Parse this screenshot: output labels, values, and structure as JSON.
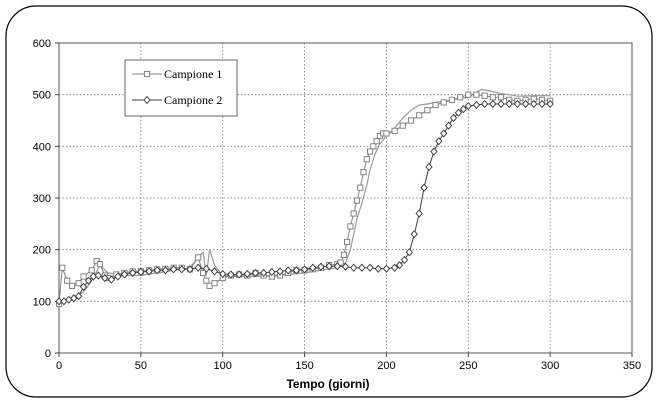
{
  "chart_data": {
    "type": "line",
    "title": "",
    "xlabel": "Tempo (giorni)",
    "ylabel": "",
    "xlim": [
      0,
      350
    ],
    "ylim": [
      0,
      600
    ],
    "xticks": [
      0,
      50,
      100,
      150,
      200,
      250,
      300,
      350
    ],
    "yticks": [
      0,
      100,
      200,
      300,
      400,
      500,
      600
    ],
    "grid": true,
    "legend": "top-left",
    "series": [
      {
        "name": "Campione 1",
        "marker": "square",
        "color": "#808080",
        "x": [
          0,
          2,
          5,
          8,
          12,
          15,
          20,
          23,
          25,
          28,
          30,
          35,
          40,
          45,
          50,
          55,
          60,
          65,
          70,
          75,
          80,
          85,
          88,
          90,
          92,
          95,
          100,
          105,
          110,
          115,
          120,
          125,
          130,
          135,
          140,
          145,
          150,
          155,
          160,
          165,
          170,
          172,
          174,
          176,
          178,
          180,
          182,
          184,
          186,
          188,
          190,
          192,
          194,
          196,
          198,
          200,
          205,
          210,
          215,
          220,
          225,
          230,
          235,
          240,
          245,
          250,
          255,
          260,
          265,
          270,
          275,
          280,
          285,
          290,
          295,
          300
        ],
        "y": [
          95,
          165,
          140,
          130,
          135,
          148,
          160,
          178,
          172,
          150,
          145,
          152,
          155,
          158,
          158,
          160,
          162,
          163,
          165,
          165,
          162,
          185,
          155,
          140,
          130,
          135,
          145,
          150,
          152,
          150,
          155,
          150,
          148,
          150,
          155,
          160,
          160,
          162,
          165,
          170,
          172,
          175,
          190,
          215,
          245,
          270,
          295,
          320,
          350,
          375,
          390,
          400,
          410,
          420,
          425,
          425,
          430,
          440,
          450,
          460,
          470,
          480,
          485,
          490,
          495,
          500,
          500,
          498,
          495,
          495,
          490,
          488,
          490,
          492,
          490,
          488
        ]
      },
      {
        "name": "Campione 2",
        "marker": "diamond",
        "color": "#404040",
        "x": [
          0,
          3,
          6,
          9,
          12,
          15,
          18,
          21,
          24,
          28,
          32,
          36,
          40,
          45,
          50,
          55,
          60,
          65,
          70,
          75,
          80,
          85,
          90,
          95,
          100,
          105,
          110,
          115,
          120,
          125,
          130,
          135,
          140,
          145,
          150,
          155,
          160,
          165,
          170,
          175,
          180,
          185,
          190,
          195,
          200,
          205,
          208,
          211,
          214,
          217,
          220,
          223,
          226,
          229,
          232,
          235,
          238,
          241,
          244,
          247,
          250,
          255,
          260,
          265,
          270,
          275,
          280,
          285,
          290,
          295,
          300
        ],
        "y": [
          100,
          100,
          103,
          106,
          110,
          128,
          140,
          148,
          150,
          145,
          142,
          148,
          152,
          155,
          157,
          158,
          160,
          160,
          162,
          162,
          162,
          165,
          163,
          158,
          153,
          152,
          152,
          153,
          155,
          155,
          157,
          158,
          160,
          160,
          162,
          165,
          167,
          168,
          168,
          167,
          165,
          165,
          165,
          163,
          163,
          165,
          170,
          180,
          195,
          230,
          270,
          320,
          360,
          390,
          410,
          425,
          440,
          455,
          465,
          472,
          478,
          480,
          482,
          482,
          482,
          482,
          482,
          482,
          482,
          482,
          482
        ]
      },
      {
        "name": "",
        "marker": "none",
        "color": "#999999",
        "x": [
          0,
          5,
          10,
          15,
          20,
          25,
          30,
          40,
          50,
          60,
          70,
          80,
          85,
          88,
          90,
          92,
          95,
          100,
          110,
          120,
          130,
          140,
          150,
          160,
          170,
          175,
          178,
          180,
          182,
          185,
          188,
          190,
          193,
          196,
          200,
          205,
          210,
          215,
          220,
          225,
          230,
          235,
          240,
          245,
          250,
          255,
          258,
          262,
          266,
          270,
          275,
          280,
          290,
          300
        ],
        "y": [
          98,
          105,
          110,
          118,
          140,
          170,
          155,
          150,
          150,
          155,
          160,
          165,
          185,
          195,
          150,
          200,
          170,
          150,
          148,
          148,
          150,
          152,
          155,
          160,
          165,
          175,
          200,
          230,
          260,
          290,
          325,
          355,
          385,
          405,
          420,
          435,
          455,
          470,
          480,
          482,
          485,
          487,
          490,
          493,
          495,
          505,
          510,
          508,
          505,
          502,
          500,
          497,
          498,
          498
        ]
      }
    ]
  }
}
